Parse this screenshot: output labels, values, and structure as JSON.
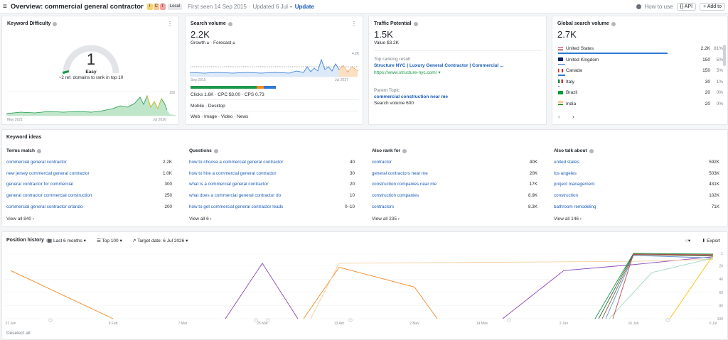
{
  "topbar": {
    "title": "Overview: commercial general contractor",
    "badges": [
      "I",
      "C",
      "T"
    ],
    "local": "Local",
    "first_seen": "First seen 14 Sep 2015",
    "updated": "Updated 6 Jul",
    "update": "Update",
    "how_to_use": "How to use",
    "api": "API",
    "add_to": "Add to"
  },
  "kd": {
    "title": "Keyword Difficulty",
    "value": "1",
    "label": "Easy",
    "sub": "~2 ref. domains to rank in top 10",
    "x_start": "May 2021",
    "x_end": "Jul 2026",
    "y_max": "100"
  },
  "sv": {
    "title": "Search volume",
    "value": "2.2K",
    "growth": "Growth",
    "forecast": "Forecast",
    "y_max": "4.2K",
    "x_start": "Sep 2015",
    "x_end": "Jul 2027",
    "stats": "Clicks 1.6K  ·  CPC $3.00  ·  CPS 0.73",
    "devices": "Mobile  ·  Desktop",
    "types": "Web  ·  Image  ·  Video  ·  News"
  },
  "tp": {
    "title": "Traffic Potential",
    "value": "1.5K",
    "value_line": "Value $3.2K",
    "top_ranking": "Top ranking result",
    "result_title": "Structure NYC | Luxury General Contractor | Commercial ...",
    "result_url": "https://www.structure-nyc.com/",
    "parent_topic": "Parent Topic",
    "parent_kw": "commercial construction near me",
    "parent_sv": "Search volume 600"
  },
  "gsv": {
    "title": "Global search volume",
    "value": "2.7K",
    "countries": [
      {
        "name": "United States",
        "vol": "2.2K",
        "pct": "81%",
        "share": 0.81
      },
      {
        "name": "United Kingdom",
        "vol": "150",
        "pct": "5%",
        "share": 0.05
      },
      {
        "name": "Canada",
        "vol": "150",
        "pct": "5%",
        "share": 0.05
      },
      {
        "name": "Italy",
        "vol": "30",
        "pct": "1%",
        "share": 0.01
      },
      {
        "name": "Brazil",
        "vol": "20",
        "pct": "0%",
        "share": 0.0
      },
      {
        "name": "India",
        "vol": "20",
        "pct": "0%",
        "share": 0.0
      }
    ]
  },
  "ideas": {
    "title": "Keyword ideas",
    "cols": [
      {
        "title": "Terms match",
        "rows": [
          [
            "commercial general contractor",
            "2.2K"
          ],
          [
            "new jersey commercial general contractor",
            "1.0K"
          ],
          [
            "general contractor for commercial",
            "300"
          ],
          [
            "general contractor commercial construction",
            "250"
          ],
          [
            "commercial general contractor orlando",
            "200"
          ]
        ],
        "view_all": "View all 840"
      },
      {
        "title": "Questions",
        "rows": [
          [
            "how to choose a commercial general contractor",
            "40"
          ],
          [
            "how to hire a commercial general contractor",
            "30"
          ],
          [
            "what is a commercial general contractor",
            "20"
          ],
          [
            "what does a commercial general contractor do",
            "10"
          ],
          [
            "how to get commercial general contractor leads",
            "0–10"
          ]
        ],
        "view_all": "View all 6"
      },
      {
        "title": "Also rank for",
        "rows": [
          [
            "contractor",
            "40K"
          ],
          [
            "general contractors near me",
            "20K"
          ],
          [
            "construction companies near me",
            "17K"
          ],
          [
            "construction companies",
            "8.9K"
          ],
          [
            "contractors",
            "8.3K"
          ]
        ],
        "view_all": "View all 235"
      },
      {
        "title": "Also talk about",
        "rows": [
          [
            "united states",
            "592K"
          ],
          [
            "los angeles",
            "503K"
          ],
          [
            "project management",
            "431K"
          ],
          [
            "construction",
            "102K"
          ],
          [
            "bathroom remodeling",
            "71K"
          ]
        ],
        "view_all": "View all 146"
      }
    ]
  },
  "ph": {
    "title": "Position history",
    "range": "Last 6 months",
    "top": "Top 100",
    "target": "Target date: 6 Jul 2026",
    "export": "Export",
    "deselect": "Deselect all",
    "x_ticks": [
      "21 Jan",
      "9 Feb",
      "7 Mar",
      "25 Mar",
      "13 Apr",
      "2 May",
      "14 May",
      "2 Jun",
      "16 Jun",
      "6 Jul"
    ],
    "y_ticks": [
      "1",
      "20",
      "40",
      "60",
      "80",
      "100"
    ]
  },
  "colors": {
    "accent": "#1a5bb8",
    "green": "#1a9a4a",
    "orange": "#f08a24",
    "purple": "#8b45b5",
    "yellow": "#f2c200"
  }
}
